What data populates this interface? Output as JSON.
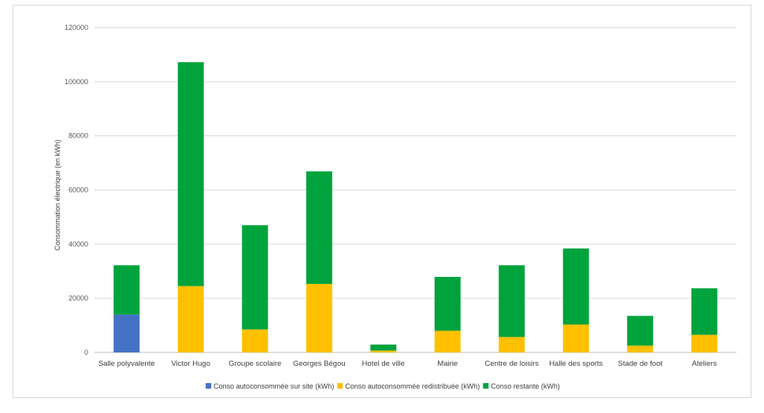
{
  "chart_data": {
    "type": "bar",
    "stacked": true,
    "title": "",
    "xlabel": "",
    "ylabel": "Consommation électrique (en kWh)",
    "ylim": [
      0,
      120000
    ],
    "yticks": [
      0,
      20000,
      40000,
      60000,
      80000,
      100000,
      120000
    ],
    "ytick_labels": [
      "0",
      "20000",
      "40000",
      "60000",
      "80000",
      "100000",
      "120000"
    ],
    "grid": true,
    "legend_position": "bottom",
    "categories": [
      "Salle polyvalente",
      "Victor Hugo",
      "Groupe scolaire",
      "Georges Bégou",
      "Hotel de ville",
      "Mairie",
      "Centre de loisirs",
      "Halle des sports",
      "Stade de foot",
      "Ateliers"
    ],
    "series": [
      {
        "name": "Conso autoconsommée sur site (kWh)",
        "color": "#4472c4",
        "values": [
          14000,
          0,
          0,
          0,
          0,
          0,
          0,
          0,
          0,
          0
        ]
      },
      {
        "name": "Conso autoconsommée redistribuée (kWh)",
        "color": "#ffc000",
        "values": [
          0,
          24500,
          8500,
          25300,
          700,
          8000,
          5700,
          10300,
          2500,
          6500
        ]
      },
      {
        "name": "Conso restante (kWh)",
        "color": "#00a33c",
        "values": [
          18200,
          82700,
          38500,
          41600,
          2200,
          19900,
          26500,
          28100,
          11000,
          17200
        ]
      }
    ]
  }
}
